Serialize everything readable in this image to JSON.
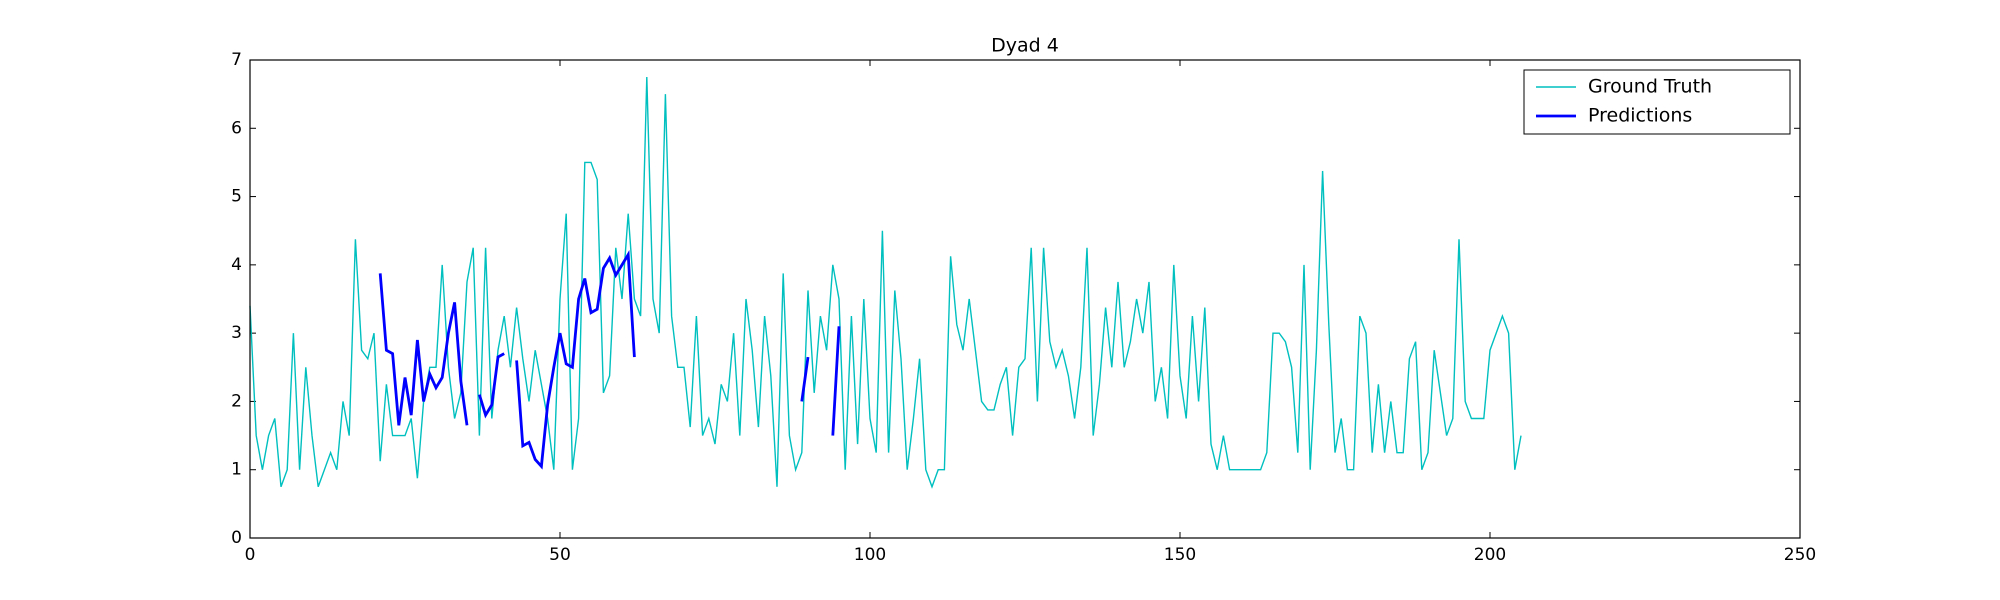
{
  "chart_data": {
    "type": "line",
    "title": "Dyad 4",
    "xlim": [
      0,
      250
    ],
    "xticks": [
      0,
      50,
      100,
      150,
      200,
      250
    ],
    "ylim": [
      0,
      7
    ],
    "yticks": [
      0,
      1,
      2,
      3,
      4,
      5,
      6,
      7
    ],
    "legend": "upper right",
    "series": [
      {
        "name": "Ground Truth",
        "color": "#00bfbf",
        "x": [
          0,
          1,
          2,
          3,
          4,
          5,
          6,
          7,
          8,
          9,
          10,
          11,
          12,
          13,
          14,
          15,
          16,
          17,
          18,
          19,
          20,
          21,
          22,
          23,
          24,
          25,
          26,
          27,
          28,
          29,
          30,
          31,
          32,
          33,
          34,
          35,
          36,
          37,
          38,
          39,
          40,
          41,
          42,
          43,
          44,
          45,
          46,
          47,
          48,
          49,
          50,
          51,
          52,
          53,
          54,
          55,
          56,
          57,
          58,
          59,
          60,
          61,
          62,
          63,
          64,
          65,
          66,
          67,
          68,
          69,
          70,
          71,
          72,
          73,
          74,
          75,
          76,
          77,
          78,
          79,
          80,
          81,
          82,
          83,
          84,
          85,
          86,
          87,
          88,
          89,
          90,
          91,
          92,
          93,
          94,
          95,
          96,
          97,
          98,
          99,
          100,
          101,
          102,
          103,
          104,
          105,
          106,
          107,
          108,
          109,
          110,
          111,
          112,
          113,
          114,
          115,
          116,
          117,
          118,
          119,
          120,
          121,
          122,
          123,
          124,
          125,
          126,
          127,
          128,
          129,
          130,
          131,
          132,
          133,
          134,
          135,
          136,
          137,
          138,
          139,
          140,
          141,
          142,
          143,
          144,
          145,
          146,
          147,
          148,
          149,
          150,
          151,
          152,
          153,
          154,
          155,
          156,
          157,
          158,
          159,
          160,
          161,
          162,
          163,
          164,
          165,
          166,
          167,
          168,
          169,
          170,
          171,
          172,
          173,
          174,
          175,
          176,
          177,
          178,
          179,
          180,
          181,
          182,
          183,
          184,
          185,
          186,
          187,
          188,
          189,
          190,
          191,
          192,
          193,
          194,
          195,
          196,
          197,
          198,
          199,
          200,
          201,
          202,
          203,
          204,
          205
        ],
        "values": [
          3.4,
          1.5,
          1.0,
          1.5,
          1.75,
          0.75,
          1.0,
          3.0,
          1.0,
          2.5,
          1.5,
          0.75,
          1.0,
          1.25,
          1.0,
          2.0,
          1.5,
          4.375,
          2.75,
          2.625,
          3.0,
          1.125,
          2.25,
          1.5,
          1.5,
          1.5,
          1.75,
          0.875,
          2.0,
          2.5,
          2.5,
          4.0,
          2.5,
          1.75,
          2.125,
          3.75,
          4.25,
          1.5,
          4.25,
          1.75,
          2.75,
          3.25,
          2.5,
          3.375,
          2.625,
          2.0,
          2.75,
          2.25,
          1.75,
          1.0,
          3.5,
          4.75,
          1.0,
          1.75,
          5.5,
          5.5,
          5.25,
          2.125,
          2.375,
          4.25,
          3.5,
          4.75,
          3.5,
          3.25,
          6.75,
          3.5,
          3.0,
          6.5,
          3.25,
          2.5,
          2.5,
          1.625,
          3.25,
          1.5,
          1.75,
          1.375,
          2.25,
          2.0,
          3.0,
          1.5,
          3.5,
          2.75,
          1.625,
          3.25,
          2.375,
          0.75,
          3.875,
          1.5,
          1.0,
          1.25,
          3.625,
          2.125,
          3.25,
          2.75,
          4.0,
          3.5,
          1.0,
          3.25,
          1.375,
          3.5,
          1.75,
          1.25,
          4.5,
          1.25,
          3.625,
          2.625,
          1.0,
          1.75,
          2.625,
          1.0,
          0.75,
          1.0,
          1.0,
          4.125,
          3.125,
          2.75,
          3.5,
          2.75,
          2.0,
          1.875,
          1.875,
          2.25,
          2.5,
          1.5,
          2.5,
          2.625,
          4.25,
          2.0,
          4.25,
          2.875,
          2.5,
          2.75,
          2.375,
          1.75,
          2.5,
          4.25,
          1.5,
          2.25,
          3.375,
          2.5,
          3.75,
          2.5,
          2.875,
          3.5,
          3.0,
          3.75,
          2.0,
          2.5,
          1.75,
          4.0,
          2.375,
          1.75,
          3.25,
          2.0,
          3.375,
          1.375,
          1.0,
          1.5,
          1.0,
          1.0,
          1.0,
          1.0,
          1.0,
          1.0,
          1.25,
          3.0,
          3.0,
          2.875,
          2.5,
          1.25,
          4.0,
          1.0,
          2.75,
          5.375,
          3.125,
          1.25,
          1.75,
          1.0,
          1.0,
          3.25,
          3.0,
          1.25,
          2.25,
          1.25,
          2.0,
          1.25,
          1.25,
          2.625,
          2.875,
          1.0,
          1.25,
          2.75,
          2.125,
          1.5,
          1.75,
          4.375,
          2.0,
          1.75,
          1.75,
          1.75,
          2.75,
          3.0,
          3.25,
          3.0,
          1.0,
          1.5
        ]
      },
      {
        "name": "Predictions",
        "color": "#0000ff",
        "x": [
          21,
          22,
          23,
          24,
          25,
          26,
          27,
          28,
          29,
          30,
          31,
          32,
          33,
          34,
          35,
          36,
          37,
          38,
          39,
          40,
          41,
          42,
          43,
          44,
          45,
          46,
          47,
          48,
          49,
          50,
          51,
          52,
          53,
          54,
          55,
          56,
          57,
          58,
          59,
          60,
          61,
          62,
          63,
          89,
          90,
          91,
          94,
          95
        ],
        "values": [
          3.875,
          2.75,
          2.7,
          1.65,
          2.35,
          1.8,
          2.9,
          2.0,
          2.4,
          2.2,
          2.35,
          3.0,
          3.45,
          2.3,
          1.65,
          null,
          2.1,
          1.8,
          1.95,
          2.65,
          2.7,
          null,
          2.6,
          1.35,
          1.4,
          1.15,
          1.05,
          1.95,
          2.5,
          3.0,
          2.55,
          2.5,
          3.5,
          3.8,
          3.3,
          3.35,
          3.95,
          4.1,
          3.85,
          4.0,
          4.15,
          2.65,
          null,
          2.0,
          2.65,
          null,
          1.5,
          3.1
        ]
      }
    ]
  }
}
